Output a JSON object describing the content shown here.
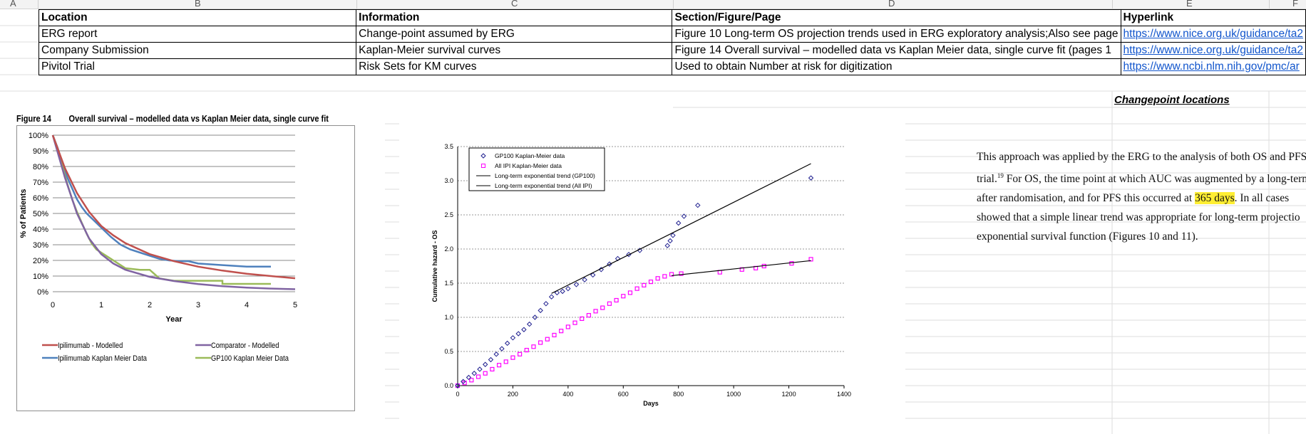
{
  "spreadsheet": {
    "column_letters": [
      "A",
      "B",
      "C",
      "D",
      "E",
      "F"
    ],
    "headers": [
      "Location",
      "Information",
      "Section/Figure/Page",
      "Hyperlink"
    ],
    "rows": [
      {
        "location": "ERG report",
        "information": "Change-point assumed by ERG",
        "section": "Figure 10 Long-term OS projection trends used in ERG exploratory analysis;Also see page",
        "hyperlink": "https://www.nice.org.uk/guidance/ta2"
      },
      {
        "location": "Company Submission",
        "information": "Kaplan-Meier survival curves",
        "section": "Figure 14 Overall survival – modelled data vs Kaplan Meier data, single curve fit (pages 1",
        "hyperlink": "https://www.nice.org.uk/guidance/ta2"
      },
      {
        "location": "Pivitol Trial",
        "information": "Risk Sets for KM curves",
        "section": "Used to obtain Number at risk for digitization",
        "hyperlink": "https://www.ncbi.nlm.nih.gov/pmc/ar"
      }
    ],
    "changepoint_label": "Changepoint locations"
  },
  "figure14": {
    "label": "Figure 14",
    "title": "Overall survival – modelled data vs Kaplan Meier data, single curve fit"
  },
  "paragraph": {
    "l1": "This approach was applied by the ERG to the analysis of both OS and PFS d",
    "l2a": "trial.",
    "l2sup": "19",
    "l2b": " For OS, the time point at which AUC was augmented by a long-term",
    "l3a": "after randomisation, and for PFS this occurred at ",
    "l3hl": "365 days",
    "l3b": ". In all cases",
    "l4": "showed that a simple linear trend was appropriate for long-term projectio",
    "l5": "exponential survival function (Figures 10 and 11)."
  },
  "chart_data": [
    {
      "type": "line",
      "xlabel": "Year",
      "ylabel": "% of Patients",
      "xlim": [
        0,
        5
      ],
      "ylim": [
        0,
        100
      ],
      "xticks": [
        "0",
        "1",
        "2",
        "3",
        "4",
        "5"
      ],
      "yticks": [
        "0%",
        "10%",
        "20%",
        "30%",
        "40%",
        "50%",
        "60%",
        "70%",
        "80%",
        "90%",
        "100%"
      ],
      "grid": true,
      "legend_position": "bottom",
      "series": [
        {
          "name": "Ipilimumab - Modelled",
          "color": "#c0504d",
          "x": [
            0,
            0.25,
            0.5,
            0.75,
            1,
            1.25,
            1.5,
            2,
            2.5,
            3,
            3.5,
            4,
            4.5,
            5
          ],
          "y": [
            100,
            79,
            63,
            51,
            42,
            36,
            31,
            24,
            19.5,
            16,
            13.5,
            11.5,
            10,
            8.6
          ]
        },
        {
          "name": "Comparator - Modelled",
          "color": "#8064a2",
          "x": [
            0,
            0.25,
            0.5,
            0.75,
            1,
            1.25,
            1.5,
            2,
            2.5,
            3,
            3.5,
            4,
            4.5,
            5
          ],
          "y": [
            100,
            73,
            50,
            34,
            24,
            18,
            14,
            9.5,
            6.8,
            4.9,
            3.5,
            2.6,
            2,
            1.6
          ]
        },
        {
          "name": "Ipilimumab Kaplan Meier Data",
          "color": "#4f81bd",
          "x": [
            0,
            0.1,
            0.2,
            0.3,
            0.4,
            0.5,
            0.6,
            0.7,
            0.8,
            0.9,
            1,
            1.2,
            1.4,
            1.6,
            1.8,
            2,
            2.2,
            2.4,
            2.6,
            2.8,
            3,
            3.5,
            4,
            4.5
          ],
          "y": [
            100,
            92,
            82,
            73,
            66,
            59,
            54,
            50,
            47,
            44,
            41,
            35,
            30,
            27,
            25,
            23,
            21,
            20,
            19.5,
            19.5,
            18,
            17,
            16,
            16
          ]
        },
        {
          "name": "GP100 Kaplan Meier Data",
          "color": "#9bbb59",
          "x": [
            0,
            0.1,
            0.2,
            0.3,
            0.4,
            0.5,
            0.6,
            0.7,
            0.8,
            0.9,
            1,
            1.2,
            1.5,
            1.8,
            2,
            2.2,
            2.5,
            3,
            3.5,
            3.5,
            4,
            4.5
          ],
          "y": [
            100,
            91,
            80,
            69,
            59,
            51,
            44,
            37,
            31,
            27,
            25,
            21,
            15,
            14,
            14,
            8.5,
            7,
            7,
            7,
            5,
            5,
            5
          ]
        }
      ]
    },
    {
      "type": "scatter",
      "xlabel": "Days",
      "ylabel": "Cumulative hazard - OS",
      "xlim": [
        0,
        1400
      ],
      "ylim": [
        0,
        3.5
      ],
      "xticks": [
        "0",
        "200",
        "400",
        "600",
        "800",
        "1000",
        "1200",
        "1400"
      ],
      "yticks": [
        "0.0",
        "0.5",
        "1.0",
        "1.5",
        "2.0",
        "2.5",
        "3.0",
        "3.5"
      ],
      "grid": true,
      "legend_position": "top-left",
      "series": [
        {
          "name": "GP100 Kaplan-Meier data",
          "marker": "diamond",
          "color": "#1f1f8f",
          "x": [
            0,
            20,
            40,
            60,
            80,
            100,
            120,
            140,
            160,
            180,
            200,
            220,
            240,
            260,
            280,
            300,
            320,
            340,
            360,
            380,
            400,
            430,
            460,
            490,
            520,
            550,
            580,
            620,
            660,
            760,
            770,
            780,
            800,
            820,
            870,
            1280
          ],
          "y": [
            0,
            0.06,
            0.12,
            0.18,
            0.24,
            0.31,
            0.38,
            0.46,
            0.54,
            0.62,
            0.7,
            0.76,
            0.82,
            0.9,
            1.0,
            1.1,
            1.2,
            1.3,
            1.36,
            1.38,
            1.42,
            1.48,
            1.55,
            1.62,
            1.7,
            1.78,
            1.86,
            1.92,
            1.98,
            2.05,
            2.12,
            2.2,
            2.38,
            2.48,
            2.64,
            3.04
          ]
        },
        {
          "name": "All IPI Kaplan-Meier data",
          "marker": "square",
          "color": "#ff00ff",
          "x": [
            0,
            25,
            50,
            75,
            100,
            125,
            150,
            175,
            200,
            225,
            250,
            275,
            300,
            325,
            350,
            375,
            400,
            425,
            450,
            475,
            500,
            525,
            550,
            575,
            600,
            625,
            650,
            675,
            700,
            725,
            750,
            775,
            810,
            950,
            1030,
            1080,
            1110,
            1210,
            1280
          ],
          "y": [
            0,
            0.04,
            0.08,
            0.13,
            0.18,
            0.24,
            0.3,
            0.35,
            0.41,
            0.46,
            0.52,
            0.57,
            0.63,
            0.68,
            0.74,
            0.8,
            0.86,
            0.92,
            0.98,
            1.03,
            1.09,
            1.14,
            1.2,
            1.25,
            1.31,
            1.36,
            1.42,
            1.47,
            1.52,
            1.57,
            1.6,
            1.63,
            1.64,
            1.66,
            1.7,
            1.72,
            1.75,
            1.79,
            1.85
          ]
        },
        {
          "name": "Long-term exponential trend (GP100)",
          "color": "#000000",
          "x": [
            340,
            1280
          ],
          "y": [
            1.35,
            3.25
          ]
        },
        {
          "name": "Long-term exponential trend (All IPI)",
          "color": "#000000",
          "x": [
            775,
            1280
          ],
          "y": [
            1.61,
            1.83
          ]
        }
      ]
    }
  ]
}
